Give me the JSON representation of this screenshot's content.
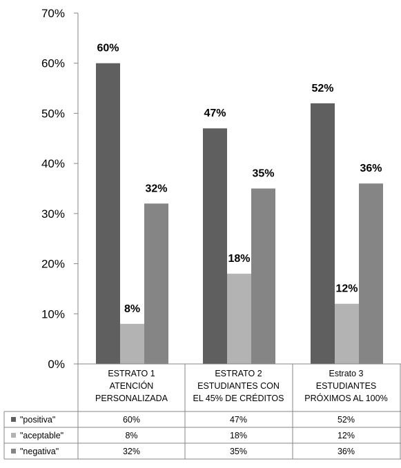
{
  "chart_data": {
    "type": "bar",
    "categories": [
      [
        "ESTRATO 1",
        "ATENCIÓN",
        "PERSONALIZADA"
      ],
      [
        "ESTRATO 2",
        "ESTUDIANTES CON",
        "EL 45% DE CRÉDITOS"
      ],
      [
        "Estrato 3",
        "ESTUDIANTES",
        "PRÓXIMOS AL 100%"
      ]
    ],
    "series": [
      {
        "name": "\"positiva\"",
        "values": [
          60,
          47,
          52
        ],
        "labels": [
          "60%",
          "47%",
          "52%"
        ],
        "color": "#5f5f5f"
      },
      {
        "name": "\"aceptable\"",
        "values": [
          8,
          18,
          12
        ],
        "labels": [
          "8%",
          "18%",
          "12%"
        ],
        "color": "#b3b3b3"
      },
      {
        "name": "\"negativa\"",
        "values": [
          32,
          35,
          36
        ],
        "labels": [
          "32%",
          "35%",
          "36%"
        ],
        "color": "#858585"
      }
    ],
    "y_ticks": [
      "0%",
      "10%",
      "20%",
      "30%",
      "40%",
      "50%",
      "60%",
      "70%"
    ],
    "ylim": [
      0,
      70
    ],
    "grid": false,
    "legend": "data-table",
    "xlabel": "",
    "ylabel": ""
  }
}
